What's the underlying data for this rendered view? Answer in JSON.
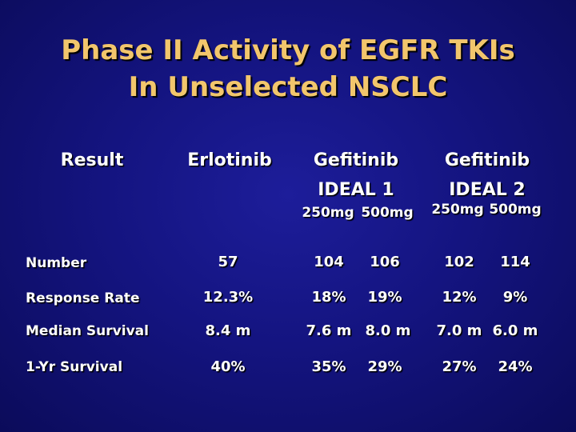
{
  "title": {
    "line1": "Phase II Activity of EGFR TKIs",
    "line2": "In Unselected NSCLC"
  },
  "header": {
    "result": "Result",
    "erlotinib": "Erlotinib",
    "gef1_name": "Gefitinib",
    "gef1_trial": "IDEAL 1",
    "gef2_name": "Gefitinib",
    "gef2_trial": "IDEAL 2",
    "dose_low": "250mg",
    "dose_high": "500mg"
  },
  "rows": [
    {
      "label": "Number",
      "values": [
        "57",
        "104",
        "106",
        "102",
        "114"
      ]
    },
    {
      "label": "Response Rate",
      "values": [
        "12.3%",
        "18%",
        "19%",
        "12%",
        "9%"
      ]
    },
    {
      "label": "Median Survival",
      "values": [
        "8.4 m",
        "7.6 m",
        "8.0 m",
        "7.0 m",
        "6.0 m"
      ]
    },
    {
      "label": "1-Yr Survival",
      "values": [
        "40%",
        "35%",
        "29%",
        "27%",
        "24%"
      ]
    }
  ]
}
